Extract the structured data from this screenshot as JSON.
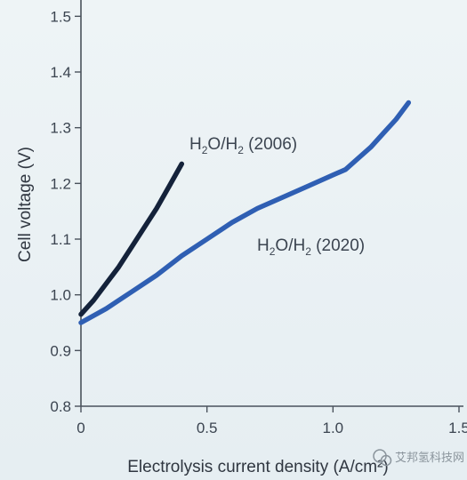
{
  "chart_data": {
    "type": "line",
    "title": "",
    "xlabel": "Electrolysis current density (A/cm²)",
    "ylabel": "Cell voltage (V)",
    "xlim": [
      0,
      1.5
    ],
    "ylim": [
      0.8,
      1.55
    ],
    "x_ticks": [
      "0",
      "0.5",
      "1.0",
      "1.5"
    ],
    "y_ticks": [
      "0.8",
      "0.9",
      "1.0",
      "1.1",
      "1.2",
      "1.3",
      "1.4",
      "1.5"
    ],
    "grid": false,
    "series": [
      {
        "name": "H2O/H2 (2006)",
        "label_main": "H",
        "label_sub1": "2",
        "label_mid": "O/H",
        "label_sub2": "2",
        "label_tail": " (2006)",
        "color": "#14223a",
        "x": [
          0.0,
          0.05,
          0.1,
          0.15,
          0.2,
          0.25,
          0.3,
          0.35,
          0.4
        ],
        "y": [
          0.965,
          0.99,
          1.02,
          1.05,
          1.085,
          1.12,
          1.155,
          1.195,
          1.235
        ]
      },
      {
        "name": "H2O/H2 (2020)",
        "label_main": "H",
        "label_sub1": "2",
        "label_mid": "O/H",
        "label_sub2": "2",
        "label_tail": " (2020)",
        "color": "#2f5fb3",
        "x": [
          0.0,
          0.1,
          0.2,
          0.3,
          0.4,
          0.5,
          0.6,
          0.7,
          0.8,
          0.9,
          1.0,
          1.05,
          1.1,
          1.15,
          1.2,
          1.25,
          1.3
        ],
        "y": [
          0.95,
          0.975,
          1.005,
          1.035,
          1.07,
          1.1,
          1.13,
          1.155,
          1.175,
          1.195,
          1.215,
          1.225,
          1.245,
          1.265,
          1.29,
          1.315,
          1.345
        ]
      }
    ]
  },
  "watermark": {
    "icon": "wechat-icon",
    "text": "艾邦氢科技网"
  }
}
